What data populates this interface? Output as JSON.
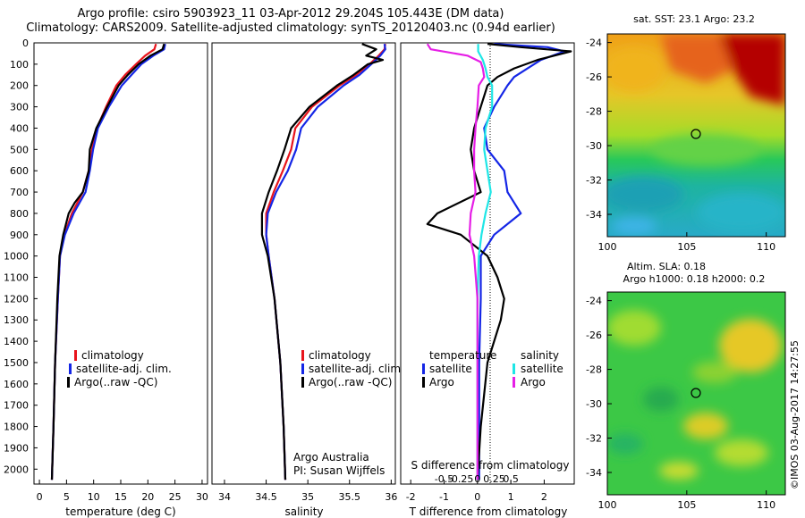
{
  "header": {
    "title_line1": "Argo profile: csiro 5903923_11 03-Apr-2012 29.204S 105.443E (DM data)",
    "title_line2": "Climatology: CARS2009. Satellite-adjusted climatology: synTS_20120403.nc (0.94d earlier)"
  },
  "colors": {
    "climatology": "#e8141c",
    "satellite": "#1426e6",
    "argo": "#000000",
    "argo_salinity_diff": "#e61ee6",
    "sat_salinity_diff": "#1ee6e6"
  },
  "depth_axis": {
    "ticks": [
      0,
      100,
      200,
      300,
      400,
      500,
      600,
      700,
      800,
      900,
      1000,
      1100,
      1200,
      1300,
      1400,
      1500,
      1600,
      1700,
      1800,
      1900,
      2000
    ],
    "ylim": [
      0,
      2070
    ]
  },
  "chart_data": [
    {
      "type": "line",
      "id": "temperature",
      "xlabel": "temperature (deg C)",
      "xlim": [
        -1,
        31
      ],
      "xticks": [
        0,
        5,
        10,
        15,
        20,
        25,
        30
      ],
      "legend": [
        "climatology",
        "satellite-adj. clim.",
        "Argo(..raw -QC)"
      ],
      "series": [
        {
          "name": "climatology",
          "color_key": "climatology",
          "depth": [
            5,
            30,
            60,
            100,
            150,
            200,
            300,
            400,
            500,
            600,
            700,
            800,
            900,
            1000,
            1200,
            1500,
            1800,
            2050
          ],
          "values": [
            21.5,
            21.2,
            19.5,
            17.8,
            15.8,
            14.2,
            12.3,
            10.6,
            9.7,
            9.1,
            8.0,
            6.0,
            4.6,
            3.8,
            3.4,
            2.9,
            2.6,
            2.3
          ]
        },
        {
          "name": "satellite-adj. clim.",
          "color_key": "satellite",
          "depth": [
            5,
            30,
            60,
            100,
            150,
            200,
            300,
            400,
            500,
            600,
            700,
            800,
            900,
            1000,
            1200,
            1500,
            1800,
            2050
          ],
          "values": [
            23.2,
            23.0,
            21.0,
            18.8,
            17.0,
            15.2,
            12.8,
            10.8,
            9.9,
            9.3,
            8.5,
            6.3,
            4.7,
            3.8,
            3.4,
            2.9,
            2.6,
            2.3
          ]
        },
        {
          "name": "Argo(..raw -QC)",
          "color_key": "argo",
          "depth": [
            5,
            30,
            60,
            100,
            150,
            200,
            300,
            400,
            500,
            600,
            700,
            750,
            800,
            900,
            1000,
            1200,
            1500,
            1800,
            2050
          ],
          "values": [
            23.0,
            22.7,
            20.5,
            18.3,
            16.3,
            14.6,
            12.5,
            10.5,
            9.3,
            9.1,
            8.0,
            6.5,
            5.4,
            4.4,
            3.7,
            3.3,
            2.9,
            2.6,
            2.3
          ]
        }
      ]
    },
    {
      "type": "line",
      "id": "salinity",
      "xlabel": "salinity",
      "xlim": [
        33.85,
        36.05
      ],
      "xticks": [
        34,
        34.5,
        35,
        35.5,
        36
      ],
      "xtick_labels": [
        "34",
        "34.5",
        "35",
        "35.5",
        "36"
      ],
      "legend": [
        "climatology",
        "satellite-adj. clim.",
        "Argo(..raw -QC)"
      ],
      "annotation_line1": "Argo Australia",
      "annotation_line2": "PI: Susan Wijffels",
      "series": [
        {
          "name": "climatology",
          "color_key": "climatology",
          "depth": [
            5,
            30,
            60,
            100,
            150,
            200,
            300,
            400,
            500,
            600,
            700,
            800,
            900,
            1000,
            1200,
            1500,
            1800,
            2050
          ],
          "values": [
            35.93,
            35.92,
            35.85,
            35.74,
            35.58,
            35.38,
            35.05,
            34.85,
            34.8,
            34.7,
            34.59,
            34.5,
            34.5,
            34.53,
            34.6,
            34.67,
            34.71,
            34.73
          ]
        },
        {
          "name": "satellite-adj. clim.",
          "color_key": "satellite",
          "depth": [
            5,
            30,
            60,
            100,
            150,
            200,
            300,
            400,
            500,
            600,
            700,
            800,
            900,
            1000,
            1200,
            1500,
            1800,
            2050
          ],
          "values": [
            35.92,
            35.93,
            35.87,
            35.76,
            35.62,
            35.43,
            35.12,
            34.92,
            34.86,
            34.76,
            34.62,
            34.52,
            34.5,
            34.53,
            34.6,
            34.67,
            34.71,
            34.73
          ]
        },
        {
          "name": "Argo(..raw -QC)",
          "color_key": "argo",
          "depth": [
            5,
            30,
            60,
            80,
            100,
            150,
            200,
            300,
            400,
            500,
            600,
            700,
            800,
            900,
            1000,
            1200,
            1500,
            1800,
            2050
          ],
          "values": [
            35.65,
            35.82,
            35.7,
            35.9,
            35.72,
            35.55,
            35.35,
            35.02,
            34.8,
            34.72,
            34.63,
            34.53,
            34.45,
            34.45,
            34.52,
            34.6,
            34.67,
            34.71,
            34.73
          ]
        }
      ]
    },
    {
      "type": "line",
      "id": "differences",
      "xlabel": "T difference from climatology",
      "xlim": [
        -2.3,
        2.9
      ],
      "xticks": [
        -2,
        -1,
        0,
        1,
        2
      ],
      "top_label": "S difference from climatology",
      "top_ticks": [
        "-0.5",
        "-0.25",
        "0",
        "0.25",
        "0.5"
      ],
      "legend_heads": [
        "temperature",
        "salinity"
      ],
      "legend": [
        {
          "group": "temperature",
          "name": "satellite",
          "color_key": "satellite"
        },
        {
          "group": "temperature",
          "name": "Argo",
          "color_key": "argo"
        },
        {
          "group": "salinity",
          "name": "satellite",
          "color_key": "sat_salinity_diff"
        },
        {
          "group": "salinity",
          "name": "Argo",
          "color_key": "argo_salinity_diff"
        }
      ],
      "series": [
        {
          "name": "T satellite",
          "color_key": "satellite",
          "depth": [
            5,
            20,
            40,
            80,
            120,
            160,
            200,
            300,
            400,
            500,
            600,
            700,
            800,
            900,
            1000,
            1200,
            1500,
            1800,
            2050
          ],
          "values": [
            0.5,
            2.1,
            2.6,
            1.9,
            1.5,
            1.1,
            0.9,
            0.5,
            0.2,
            0.3,
            0.8,
            0.9,
            1.3,
            0.5,
            0.1,
            0.1,
            0.05,
            0.05,
            0.05
          ]
        },
        {
          "name": "T Argo",
          "color_key": "argo",
          "depth": [
            5,
            20,
            40,
            80,
            120,
            160,
            200,
            300,
            400,
            500,
            600,
            700,
            800,
            850,
            900,
            1000,
            1100,
            1200,
            1300,
            1500,
            1800,
            2050
          ],
          "values": [
            0.3,
            1.3,
            2.8,
            1.8,
            1.1,
            0.6,
            0.3,
            0.1,
            -0.1,
            -0.2,
            -0.1,
            0.1,
            -1.2,
            -1.5,
            -0.5,
            0.3,
            0.6,
            0.8,
            0.7,
            0.3,
            0.1,
            0.0
          ]
        },
        {
          "name": "S satellite",
          "color_key": "sat_salinity_diff",
          "depth": [
            5,
            40,
            80,
            120,
            160,
            200,
            300,
            400,
            500,
            600,
            700,
            800,
            900,
            1000,
            1200,
            1500,
            1800,
            2050
          ],
          "values": [
            0.01,
            0.01,
            0.08,
            0.12,
            0.15,
            0.22,
            0.22,
            0.12,
            0.1,
            0.15,
            0.2,
            0.12,
            0.06,
            0.02,
            0.0,
            0.0,
            0.0,
            0.0
          ]
        },
        {
          "name": "S Argo",
          "color_key": "argo_salinity_diff",
          "depth": [
            5,
            30,
            60,
            90,
            120,
            160,
            200,
            300,
            400,
            500,
            600,
            700,
            800,
            900,
            1000,
            1200,
            1500,
            1800,
            2050
          ],
          "values": [
            -0.75,
            -0.7,
            -0.15,
            0.05,
            0.08,
            0.1,
            0.02,
            0.0,
            -0.03,
            -0.05,
            -0.05,
            -0.03,
            -0.1,
            -0.12,
            -0.05,
            0.0,
            0.0,
            0.0,
            0.0
          ]
        }
      ]
    },
    {
      "type": "heatmap",
      "id": "sst-map",
      "title": "sat. SST: 23.1  Argo: 23.2",
      "xticks": [
        100,
        105,
        110
      ],
      "yticks": [
        -24,
        -26,
        -28,
        -30,
        -32,
        -34
      ],
      "xlim": [
        100,
        111.2
      ],
      "ylim": [
        -35.3,
        -23.5
      ],
      "marker": {
        "lon": 105.44,
        "lat": -29.2
      }
    },
    {
      "type": "heatmap",
      "id": "sla-map",
      "title": "Altim. SLA: 0.18",
      "subtitle": "Argo h1000: 0.18 h2000: 0.2",
      "xticks": [
        100,
        105,
        110
      ],
      "yticks": [
        -24,
        -26,
        -28,
        -30,
        -32,
        -34
      ],
      "xlim": [
        100,
        111.2
      ],
      "ylim": [
        -35.3,
        -23.5
      ],
      "marker": {
        "lon": 105.44,
        "lat": -29.2
      }
    }
  ],
  "footer": {
    "credit": "©IMOS 03-Aug-2017 14:27:55"
  }
}
